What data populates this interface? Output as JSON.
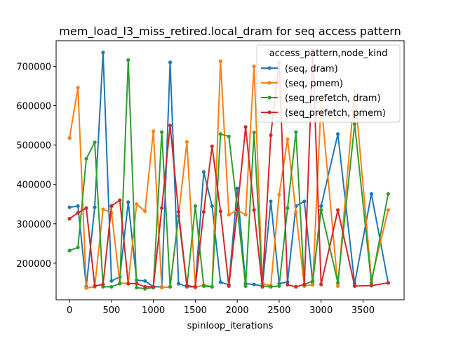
{
  "chart_data": {
    "type": "line",
    "title": "mem_load_l3_miss_retired.local_dram for seq access pattern",
    "xlabel": "spinloop_iterations",
    "ylabel": "",
    "xlim": [
      -160,
      3990
    ],
    "ylim": [
      107000,
      765000
    ],
    "xticks": [
      0,
      500,
      1000,
      1500,
      2000,
      2500,
      3000,
      3500
    ],
    "yticks": [
      200000,
      300000,
      400000,
      500000,
      600000,
      700000
    ],
    "ytick_labels": [
      "200000",
      "300000",
      "400000",
      "500000",
      "600000",
      "700000"
    ],
    "grid": false,
    "legend": {
      "title": "access_pattern,node_kind",
      "placement": "upper right"
    },
    "series": [
      {
        "name": "(seq, dram)",
        "color": "#1f77b4",
        "points": [
          [
            0,
            342000
          ],
          [
            100,
            345000
          ],
          [
            200,
            141000
          ],
          [
            300,
            342000
          ],
          [
            400,
            735000
          ],
          [
            500,
            155000
          ],
          [
            600,
            165000
          ],
          [
            700,
            355000
          ],
          [
            800,
            157000
          ],
          [
            900,
            155000
          ],
          [
            1000,
            140000
          ],
          [
            1100,
            140000
          ],
          [
            1200,
            710000
          ],
          [
            1300,
            148000
          ],
          [
            1400,
            140000
          ],
          [
            1500,
            140000
          ],
          [
            1600,
            432000
          ],
          [
            1700,
            345000
          ],
          [
            1800,
            152000
          ],
          [
            1900,
            145000
          ],
          [
            2000,
            390000
          ],
          [
            2100,
            148000
          ],
          [
            2200,
            146000
          ],
          [
            2300,
            142000
          ],
          [
            2400,
            357000
          ],
          [
            2500,
            148000
          ],
          [
            2600,
            152000
          ],
          [
            2700,
            345000
          ],
          [
            2800,
            357000
          ],
          [
            2900,
            150000
          ],
          [
            3000,
            345000
          ],
          [
            3200,
            528000
          ],
          [
            3400,
            148000
          ],
          [
            3600,
            376000
          ],
          [
            3800,
            150000
          ]
        ]
      },
      {
        "name": "(seq, pmem)",
        "color": "#ff7f0e",
        "points": [
          [
            0,
            518000
          ],
          [
            100,
            646000
          ],
          [
            200,
            137000
          ],
          [
            300,
            140000
          ],
          [
            400,
            337000
          ],
          [
            500,
            328000
          ],
          [
            600,
            150000
          ],
          [
            700,
            148000
          ],
          [
            800,
            350000
          ],
          [
            900,
            332000
          ],
          [
            1000,
            535000
          ],
          [
            1100,
            138000
          ],
          [
            1200,
            140000
          ],
          [
            1300,
            320000
          ],
          [
            1400,
            508000
          ],
          [
            1500,
            138000
          ],
          [
            1600,
            145000
          ],
          [
            1700,
            140000
          ],
          [
            1800,
            713000
          ],
          [
            1900,
            323000
          ],
          [
            2000,
            335000
          ],
          [
            2100,
            323000
          ],
          [
            2200,
            700000
          ],
          [
            2300,
            148000
          ],
          [
            2400,
            143000
          ],
          [
            2500,
            374000
          ],
          [
            2600,
            515000
          ],
          [
            2700,
            330000
          ],
          [
            2800,
            142000
          ],
          [
            2900,
            145000
          ],
          [
            3000,
            610000
          ],
          [
            3200,
            142000
          ],
          [
            3400,
            640000
          ],
          [
            3600,
            158000
          ],
          [
            3800,
            335000
          ]
        ]
      },
      {
        "name": "(seq_prefetch, dram)",
        "color": "#2ca02c",
        "points": [
          [
            0,
            232000
          ],
          [
            100,
            240000
          ],
          [
            200,
            465000
          ],
          [
            300,
            507000
          ],
          [
            400,
            140000
          ],
          [
            500,
            140000
          ],
          [
            600,
            148000
          ],
          [
            700,
            716000
          ],
          [
            800,
            138000
          ],
          [
            900,
            135000
          ],
          [
            1000,
            138000
          ],
          [
            1100,
            533000
          ],
          [
            1200,
            140000
          ],
          [
            1300,
            320000
          ],
          [
            1400,
            140000
          ],
          [
            1500,
            345000
          ],
          [
            1600,
            142000
          ],
          [
            1700,
            140000
          ],
          [
            1800,
            528000
          ],
          [
            1900,
            522000
          ],
          [
            2000,
            340000
          ],
          [
            2100,
            142000
          ],
          [
            2200,
            532000
          ],
          [
            2300,
            142000
          ],
          [
            2400,
            140000
          ],
          [
            2500,
            142000
          ],
          [
            2600,
            340000
          ],
          [
            2700,
            533000
          ],
          [
            2800,
            145000
          ],
          [
            2900,
            155000
          ],
          [
            3000,
            335000
          ],
          [
            3200,
            150000
          ],
          [
            3400,
            553000
          ],
          [
            3600,
            150000
          ],
          [
            3800,
            376000
          ]
        ]
      },
      {
        "name": "(seq_prefetch, pmem)",
        "color": "#d62728",
        "points": [
          [
            0,
            313000
          ],
          [
            100,
            328000
          ],
          [
            200,
            340000
          ],
          [
            300,
            142000
          ],
          [
            400,
            146000
          ],
          [
            500,
            345000
          ],
          [
            600,
            360000
          ],
          [
            700,
            148000
          ],
          [
            800,
            148000
          ],
          [
            900,
            140000
          ],
          [
            1000,
            140000
          ],
          [
            1100,
            340000
          ],
          [
            1200,
            550000
          ],
          [
            1300,
            330000
          ],
          [
            1400,
            143000
          ],
          [
            1500,
            140000
          ],
          [
            1600,
            330000
          ],
          [
            1700,
            497000
          ],
          [
            1800,
            332000
          ],
          [
            1900,
            142000
          ],
          [
            2000,
            335000
          ],
          [
            2100,
            546000
          ],
          [
            2200,
            335000
          ],
          [
            2300,
            140000
          ],
          [
            2400,
            525000
          ],
          [
            2500,
            710000
          ],
          [
            2600,
            145000
          ],
          [
            2700,
            140000
          ],
          [
            2800,
            146000
          ],
          [
            2900,
            738000
          ],
          [
            3000,
            146000
          ],
          [
            3200,
            335000
          ],
          [
            3400,
            142000
          ],
          [
            3600,
            143000
          ],
          [
            3800,
            150000
          ]
        ]
      }
    ]
  }
}
